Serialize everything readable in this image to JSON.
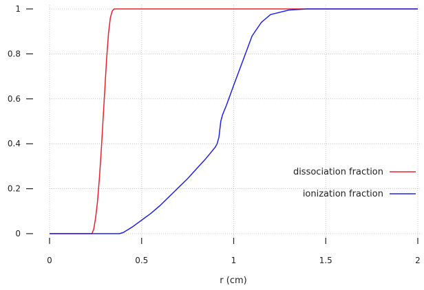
{
  "chart_data": {
    "type": "line",
    "title": "",
    "xlabel": "r (cm)",
    "ylabel": "",
    "xlim": [
      0,
      2
    ],
    "ylim": [
      0,
      1
    ],
    "x_ticks": [
      0,
      0.5,
      1,
      1.5,
      2
    ],
    "x_tick_labels": [
      "0",
      "0.5",
      "1",
      "1.5",
      "2"
    ],
    "y_ticks": [
      0,
      0.2,
      0.4,
      0.6,
      0.8,
      1
    ],
    "y_tick_labels": [
      "0",
      "0.2",
      "0.4",
      "0.6",
      "0.8",
      "1"
    ],
    "grid": true,
    "legend_position": "right",
    "series": [
      {
        "name": "dissociation fraction",
        "color": "#e8202a",
        "points": [
          [
            0,
            0
          ],
          [
            0.23,
            0
          ],
          [
            0.24,
            0.02
          ],
          [
            0.25,
            0.07
          ],
          [
            0.26,
            0.14
          ],
          [
            0.27,
            0.24
          ],
          [
            0.28,
            0.36
          ],
          [
            0.29,
            0.5
          ],
          [
            0.3,
            0.64
          ],
          [
            0.31,
            0.78
          ],
          [
            0.32,
            0.89
          ],
          [
            0.33,
            0.96
          ],
          [
            0.34,
            0.99
          ],
          [
            0.35,
            1.0
          ],
          [
            0.4,
            1.0
          ],
          [
            2.0,
            1.0
          ]
        ]
      },
      {
        "name": "ionization fraction",
        "color": "#1e22e6",
        "points": [
          [
            0,
            0
          ],
          [
            0.38,
            0
          ],
          [
            0.4,
            0.005
          ],
          [
            0.42,
            0.015
          ],
          [
            0.45,
            0.03
          ],
          [
            0.5,
            0.06
          ],
          [
            0.55,
            0.09
          ],
          [
            0.6,
            0.125
          ],
          [
            0.65,
            0.165
          ],
          [
            0.7,
            0.205
          ],
          [
            0.75,
            0.245
          ],
          [
            0.8,
            0.29
          ],
          [
            0.85,
            0.335
          ],
          [
            0.9,
            0.385
          ],
          [
            0.91,
            0.4
          ],
          [
            0.92,
            0.43
          ],
          [
            0.93,
            0.5
          ],
          [
            0.94,
            0.53
          ],
          [
            0.96,
            0.57
          ],
          [
            1.0,
            0.66
          ],
          [
            1.05,
            0.77
          ],
          [
            1.1,
            0.88
          ],
          [
            1.15,
            0.94
          ],
          [
            1.2,
            0.975
          ],
          [
            1.3,
            0.995
          ],
          [
            1.4,
            1.0
          ],
          [
            1.6,
            1.0
          ],
          [
            2.0,
            1.0
          ]
        ]
      }
    ]
  }
}
